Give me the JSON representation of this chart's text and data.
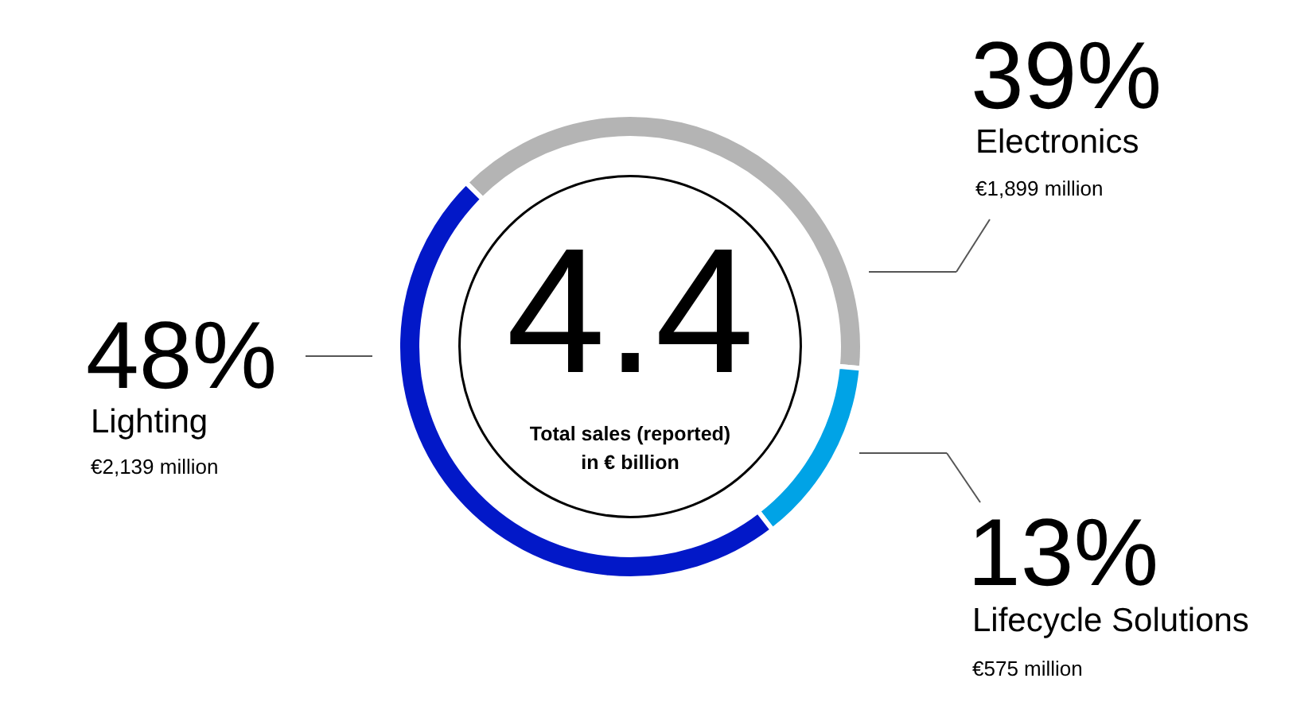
{
  "chart_data": {
    "type": "donut",
    "categories": [
      "Electronics",
      "Lifecycle Solutions",
      "Lighting"
    ],
    "values": [
      39,
      13,
      48
    ],
    "colors": [
      "#b4b4b4",
      "#00a3e6",
      "#0218c8"
    ],
    "value_labels": [
      "39%",
      "13%",
      "48%"
    ],
    "annotations": [
      "4.4",
      "Total sales (reported)",
      "in € billion",
      "€1,899 million",
      "€575 million",
      "€2,139 million"
    ]
  }
}
